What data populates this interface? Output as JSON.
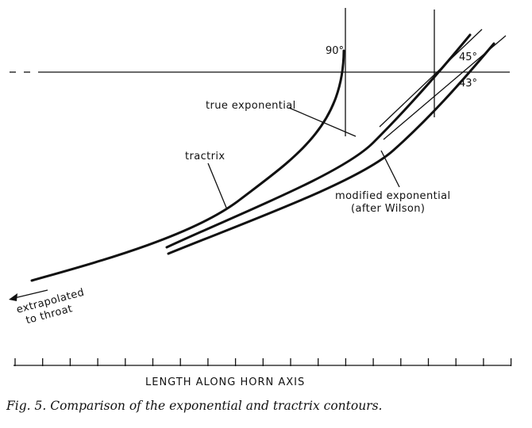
{
  "labels": {
    "angle_90": "90°",
    "angle_45": "45°",
    "angle_43": "43°",
    "true_exponential": "true exponential",
    "tractrix": "tractrix",
    "modified_exponential_line1": "modified exponential",
    "modified_exponential_line2": "(after Wilson)",
    "extrapolated_line1": "extrapolated",
    "extrapolated_line2": "to throat"
  },
  "axis": {
    "title": "LENGTH ALONG HORN AXIS"
  },
  "caption": "Fig. 5. Comparison of the exponential and tractrix contours.",
  "colors": {
    "ink": "#111111",
    "background": "#ffffff"
  }
}
